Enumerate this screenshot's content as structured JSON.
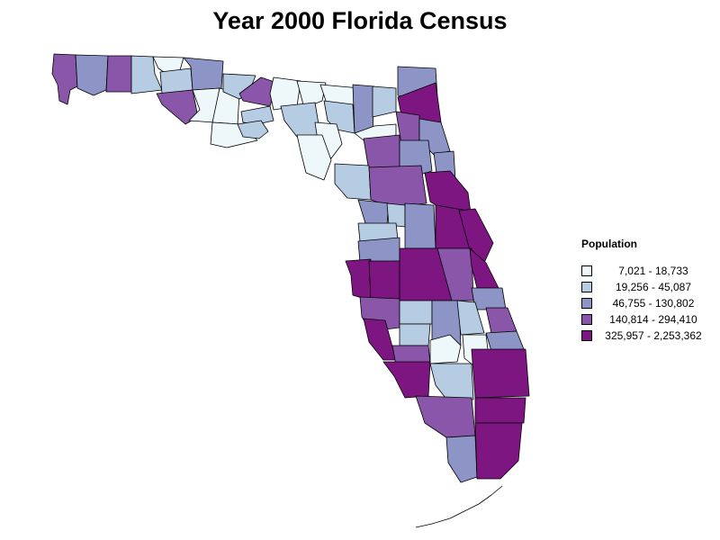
{
  "title": "Year 2000 Florida Census",
  "legend": {
    "title": "Population",
    "classes": [
      {
        "label": "7,021 - 18,733",
        "color": "#eef8fb"
      },
      {
        "label": "19,256 - 45,087",
        "color": "#b5cce3"
      },
      {
        "label": "46,755 - 130,802",
        "color": "#8c95c6"
      },
      {
        "label": "140,814 - 294,410",
        "color": "#8a56a9"
      },
      {
        "label": "325,957 - 2,253,362",
        "color": "#7e1682"
      }
    ]
  }
}
